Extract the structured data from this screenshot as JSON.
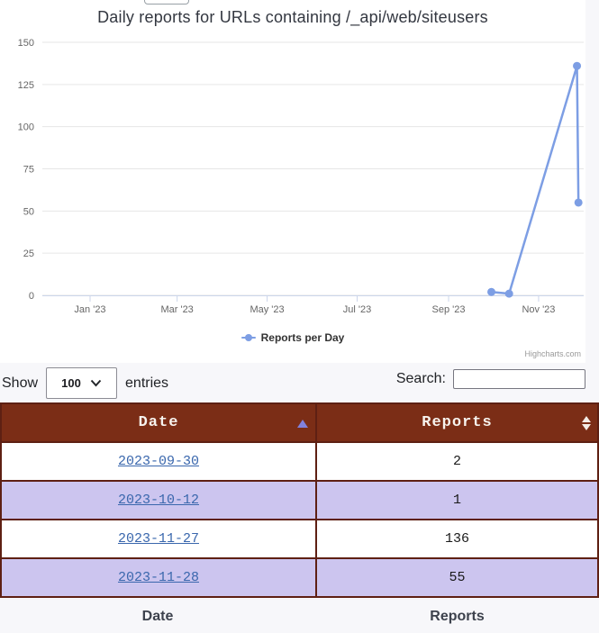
{
  "chart": {
    "title": "Daily reports for URLs containing /_api/web/siteusers",
    "legend_label": "Reports per Day",
    "credit": "Highcharts.com"
  },
  "chart_data": {
    "type": "line",
    "title": "Daily reports for URLs containing /_api/web/siteusers",
    "series": [
      {
        "name": "Reports per Day",
        "data": [
          {
            "date": "2023-09-30",
            "value": 2
          },
          {
            "date": "2023-10-12",
            "value": 1
          },
          {
            "date": "2023-11-27",
            "value": 136
          },
          {
            "date": "2023-11-28",
            "value": 55
          }
        ]
      }
    ],
    "ylim": [
      0,
      150
    ],
    "y_ticks": [
      0,
      25,
      50,
      75,
      100,
      125,
      150
    ],
    "x_epoch": "2023-01-01",
    "x_ticks": [
      {
        "label": "Jan '23",
        "date": "2023-01-01"
      },
      {
        "label": "Mar '23",
        "date": "2023-03-01"
      },
      {
        "label": "May '23",
        "date": "2023-05-01"
      },
      {
        "label": "Jul '23",
        "date": "2023-07-01"
      },
      {
        "label": "Sep '23",
        "date": "2023-09-01"
      },
      {
        "label": "Nov '23",
        "date": "2023-11-01"
      }
    ],
    "grid": true,
    "legend_position": "bottom"
  },
  "controls": {
    "show_label": "Show",
    "page_length": "100",
    "entries_label": "entries",
    "search_label": "Search:",
    "search_value": ""
  },
  "table": {
    "headers": [
      {
        "label": "Date",
        "sort": "asc"
      },
      {
        "label": "Reports",
        "sort": "none"
      }
    ],
    "rows": [
      {
        "date": "2023-09-30",
        "reports": "2"
      },
      {
        "date": "2023-10-12",
        "reports": "1"
      },
      {
        "date": "2023-11-27",
        "reports": "136"
      },
      {
        "date": "2023-11-28",
        "reports": "55"
      }
    ],
    "footer": {
      "date": "Date",
      "reports": "Reports"
    }
  },
  "colors": {
    "page_bg": "#f7f7fa",
    "chart_bg": "#ffffff",
    "series": "#7d9ee4",
    "grid": "#e6e6e6",
    "axis": "#ccd6eb",
    "tick_text": "#666666",
    "header_bg": "#7b2d16",
    "header_text": "#f7f3ee",
    "row_alt": "#ccc5ef",
    "link": "#3a67ad",
    "cell_text": "#1a1a1a",
    "border": "#5e2013",
    "divider": "#2e0f08",
    "sort_asc": "#8181dd",
    "footer_text": "#3d424d",
    "credit": "#999999"
  }
}
